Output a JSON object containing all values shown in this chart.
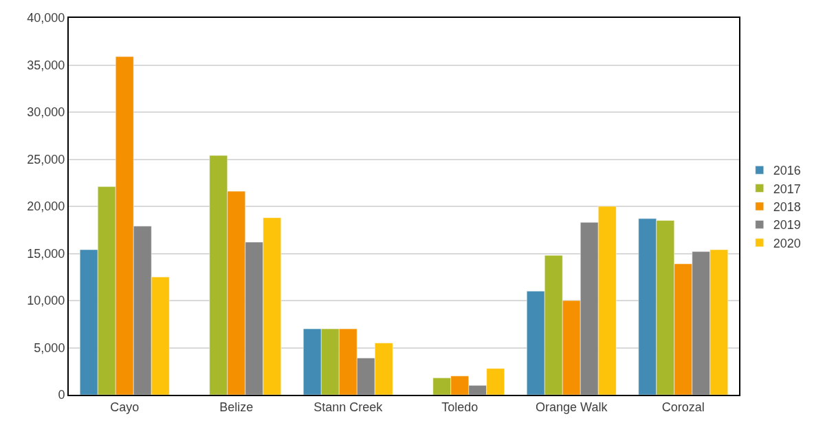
{
  "chart_data": {
    "type": "bar",
    "categories": [
      "Cayo",
      "Belize",
      "Stann Creek",
      "Toledo",
      "Orange Walk",
      "Corozal"
    ],
    "series": [
      {
        "name": "2016",
        "color": "#428bb4",
        "values": [
          15400,
          null,
          7000,
          null,
          11000,
          18700
        ]
      },
      {
        "name": "2017",
        "color": "#a8b82b",
        "values": [
          22100,
          25400,
          7000,
          1800,
          14800,
          18500
        ]
      },
      {
        "name": "2018",
        "color": "#f59100",
        "values": [
          35900,
          21600,
          7000,
          2000,
          10000,
          13900
        ]
      },
      {
        "name": "2019",
        "color": "#838383",
        "values": [
          17900,
          16200,
          3900,
          1000,
          18300,
          15200
        ]
      },
      {
        "name": "2020",
        "color": "#fdc20a",
        "values": [
          12500,
          18800,
          5500,
          2800,
          20000,
          15400
        ]
      }
    ],
    "ylim": [
      0,
      40000
    ],
    "yticks": [
      {
        "value": 0,
        "label": "0"
      },
      {
        "value": 5000,
        "label": "5,000"
      },
      {
        "value": 10000,
        "label": "10,000"
      },
      {
        "value": 15000,
        "label": "15,000"
      },
      {
        "value": 20000,
        "label": "20,000"
      },
      {
        "value": 25000,
        "label": "25,000"
      },
      {
        "value": 30000,
        "label": "30,000"
      },
      {
        "value": 35000,
        "label": "35,000"
      },
      {
        "value": 40000,
        "label": "40,000"
      }
    ],
    "grid": "y",
    "legend": "right"
  }
}
